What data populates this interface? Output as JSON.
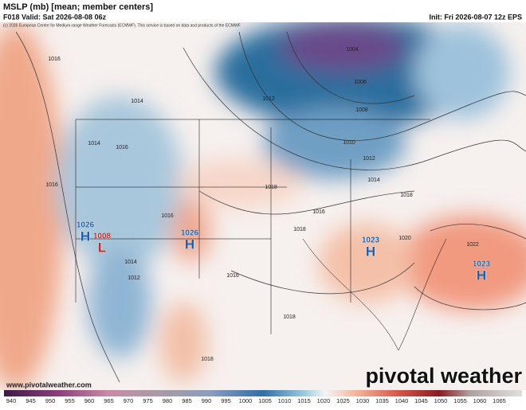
{
  "header": {
    "title": "MSLP (mb) [mean; member centers]",
    "valid": "F018 Valid: Sat 2026-08-08 06z",
    "init": "Init: Fri 2026-08-07 12z EPS",
    "credit": "(c) 2026 European Centre for Medium-range Weather Forecasts (ECMWF). This service is based on data and products of the ECMWF."
  },
  "map": {
    "isobar_labels": [
      1016,
      1004,
      1006,
      1008,
      1012,
      1014,
      1010,
      1012,
      1014,
      1016,
      1014,
      1016,
      1018,
      1018,
      1016,
      1018,
      1020,
      1022,
      1016,
      1012,
      1014,
      1018,
      1018,
      1016
    ],
    "centers": [
      {
        "type": "H",
        "pressure": 1026
      },
      {
        "type": "L",
        "pressure": 1008
      },
      {
        "type": "H",
        "pressure": 1026
      },
      {
        "type": "H",
        "pressure": 1023
      },
      {
        "type": "H",
        "pressure": 1023
      }
    ]
  },
  "colorbar": {
    "labels": [
      940,
      945,
      950,
      955,
      960,
      965,
      970,
      975,
      980,
      985,
      990,
      995,
      1000,
      1005,
      1010,
      1015,
      1020,
      1025,
      1030,
      1035,
      1040,
      1045,
      1050,
      1055,
      1060,
      1065
    ]
  },
  "footer": {
    "url": "www.pivotalweather.com",
    "logo": "pivotal weather"
  }
}
